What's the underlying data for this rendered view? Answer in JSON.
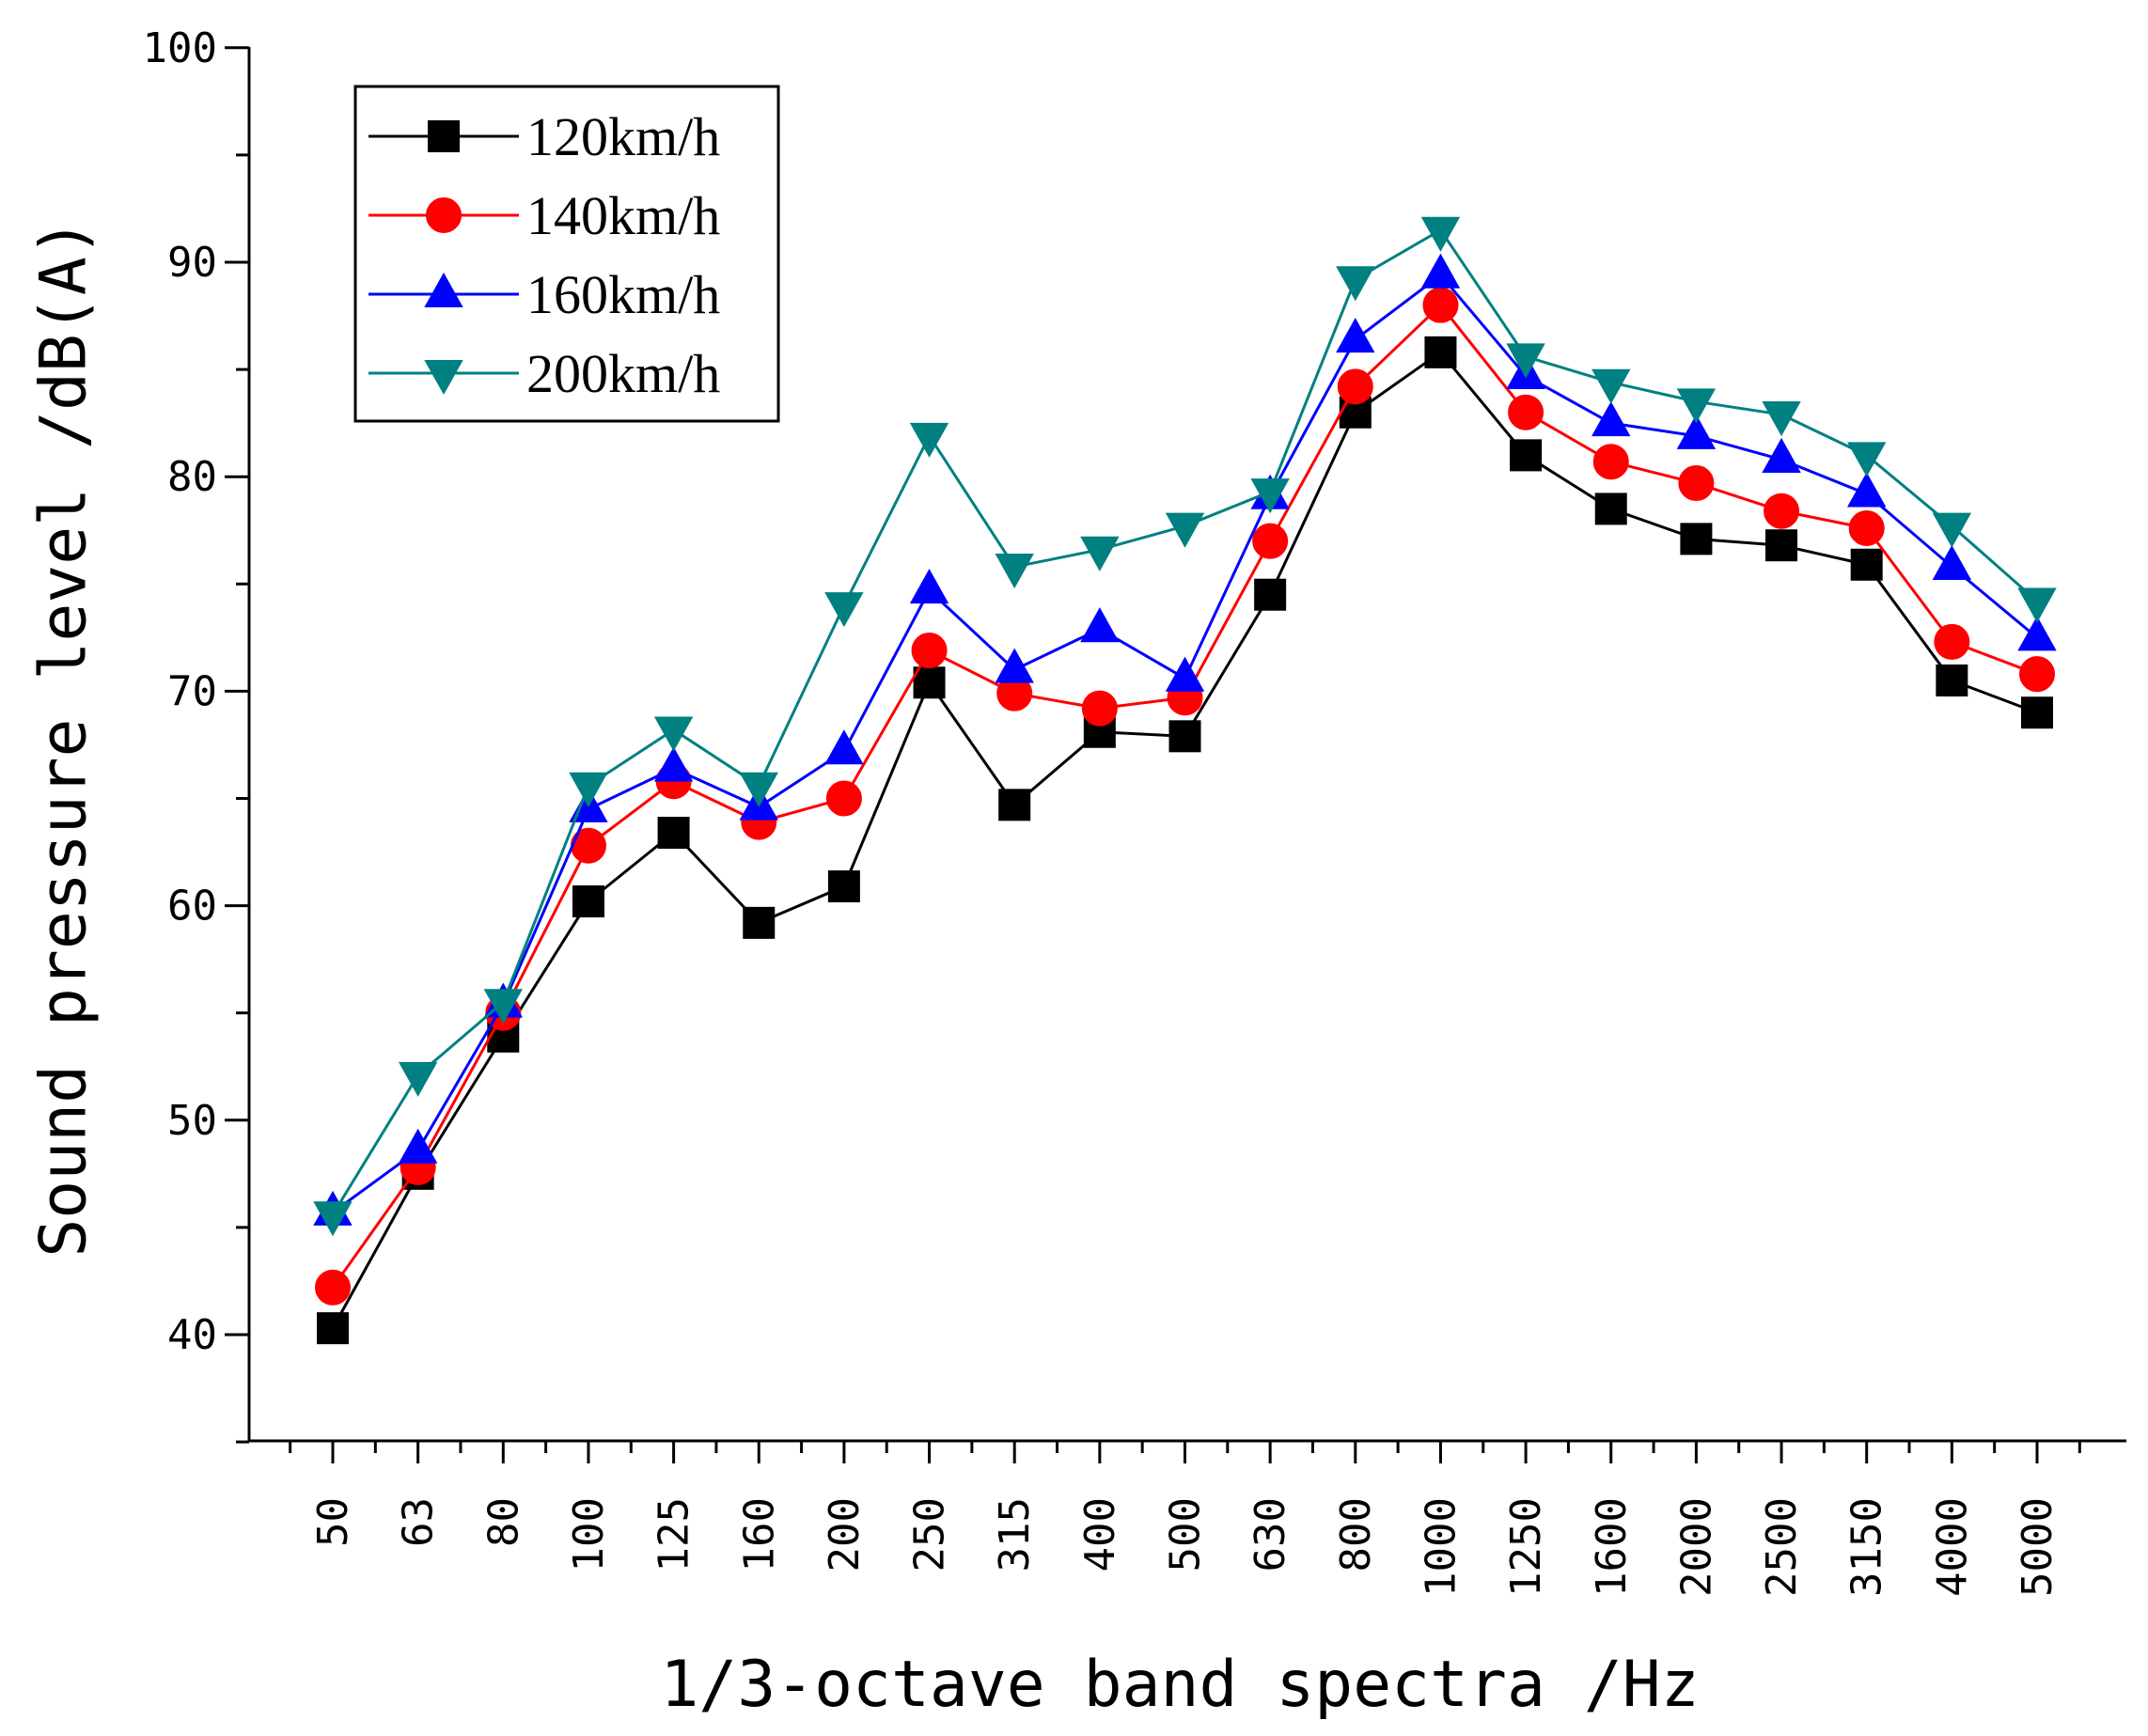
{
  "chart_data": {
    "type": "line",
    "title": "",
    "xlabel": "1/3-octave band spectra /Hz",
    "ylabel": "Sound pressure level /dB(A)",
    "ylim": [
      35,
      100
    ],
    "yticks": [
      "40",
      "50",
      "60",
      "70",
      "80",
      "90",
      "100"
    ],
    "categories": [
      "50",
      "63",
      "80",
      "100",
      "125",
      "160",
      "200",
      "250",
      "315",
      "400",
      "500",
      "630",
      "800",
      "1000",
      "1250",
      "1600",
      "2000",
      "2500",
      "3150",
      "4000",
      "5000"
    ],
    "legend_position": "top-left",
    "series": [
      {
        "name": "120km/h",
        "color": "#000000",
        "marker": "square",
        "values": [
          40.3,
          47.5,
          53.9,
          60.2,
          63.4,
          59.2,
          60.9,
          70.4,
          64.7,
          68.1,
          67.9,
          74.5,
          83.0,
          85.8,
          81.0,
          78.5,
          77.1,
          76.8,
          75.9,
          70.5,
          69.0
        ]
      },
      {
        "name": "140km/h",
        "color": "#ff0000",
        "marker": "circle",
        "values": [
          42.2,
          47.8,
          55.0,
          62.8,
          65.8,
          63.9,
          65.0,
          71.9,
          69.9,
          69.2,
          69.7,
          77.0,
          84.2,
          88.0,
          83.0,
          80.7,
          79.7,
          78.4,
          77.6,
          72.3,
          70.8
        ]
      },
      {
        "name": "160km/h",
        "color": "#0000ff",
        "marker": "triangle-up",
        "values": [
          45.7,
          48.6,
          55.4,
          64.5,
          66.4,
          64.6,
          67.2,
          74.7,
          71.0,
          72.9,
          70.6,
          79.1,
          86.4,
          89.4,
          84.7,
          82.5,
          81.9,
          80.8,
          79.2,
          75.8,
          72.5
        ]
      },
      {
        "name": "200km/h",
        "color": "#008080",
        "marker": "triangle-down",
        "values": [
          45.6,
          52.1,
          55.5,
          65.6,
          68.2,
          65.6,
          74.0,
          81.9,
          75.8,
          76.6,
          77.7,
          79.3,
          89.2,
          91.5,
          85.6,
          84.4,
          83.5,
          82.9,
          81.0,
          77.7,
          74.2
        ]
      }
    ]
  }
}
